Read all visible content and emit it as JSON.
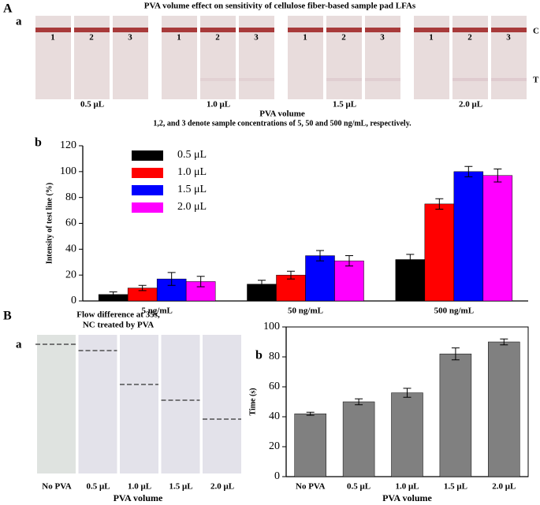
{
  "figure": {
    "panel_A": "A",
    "sub_Aa": "a",
    "title_A": "PVA volume effect on sensitivity of cellulose fiber-based sample pad LFAs",
    "strip_numbers": [
      "1",
      "2",
      "3"
    ],
    "axis_label_A": "PVA volume",
    "caption_A": "1,2, and 3 denote sample concentrations of 5, 50 and 500 ng/mL, respectively.",
    "line_labels": [
      "C",
      "T"
    ],
    "sub_Ab": "b",
    "panel_B": "B",
    "sub_Ba": "a",
    "title_B": [
      "Flow difference at 35s,",
      "NC treated by PVA"
    ],
    "axis_label_Ba": "PVA volume",
    "sub_Bb": "b"
  },
  "chart_data": [
    {
      "type": "bar",
      "y_label": "Intensity of test line (%)",
      "categories": [
        "5 ng/mL",
        "50 ng/mL",
        "500 ng/mL"
      ],
      "series": [
        {
          "name": "0.5 μL",
          "color": "#000000",
          "values": [
            5,
            13,
            32
          ],
          "errors": [
            2,
            3,
            4
          ]
        },
        {
          "name": "1.0 μL",
          "color": "#ff0000",
          "values": [
            10,
            20,
            75
          ],
          "errors": [
            2,
            3,
            4
          ]
        },
        {
          "name": "1.5 μL",
          "color": "#0000ff",
          "values": [
            17,
            35,
            100
          ],
          "errors": [
            5,
            4,
            4
          ]
        },
        {
          "name": "2.0 μL",
          "color": "#ff00ff",
          "values": [
            15,
            31,
            97
          ],
          "errors": [
            4,
            4,
            5
          ]
        }
      ],
      "ylim": [
        0,
        120
      ],
      "yticks": [
        0,
        20,
        40,
        60,
        80,
        100,
        120
      ],
      "legend": "upper left"
    },
    {
      "type": "bar",
      "y_label": "Time (s)",
      "x_label": "PVA volume",
      "categories": [
        "No PVA",
        "0.5 μL",
        "1.0 μL",
        "1.5 μL",
        "2.0 μL"
      ],
      "values": [
        42,
        50,
        56,
        82,
        90
      ],
      "errors": [
        1,
        2,
        3,
        4,
        2
      ],
      "color": "#808080",
      "ylim": [
        0,
        100
      ],
      "yticks": [
        0,
        20,
        40,
        60,
        80,
        100
      ],
      "frame": true
    }
  ]
}
